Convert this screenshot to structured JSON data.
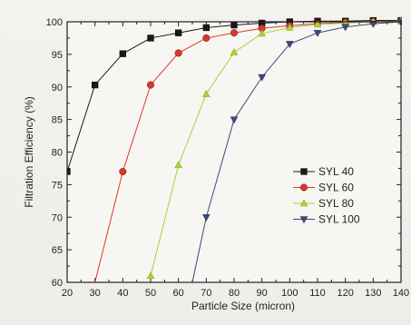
{
  "chart_data": {
    "type": "line",
    "xlabel": "Particle Size (micron)",
    "ylabel": "Filtration Efficiency (%)",
    "xlim": [
      20,
      140
    ],
    "ylim": [
      60,
      100
    ],
    "xticks": [
      20,
      30,
      40,
      50,
      60,
      70,
      80,
      90,
      100,
      110,
      120,
      130,
      140
    ],
    "yticks": [
      60,
      65,
      70,
      75,
      80,
      85,
      90,
      95,
      100
    ],
    "grid": false,
    "legend_position": "right",
    "series": [
      {
        "name": "SYL 40",
        "color": "#1a1a1a",
        "marker": "square",
        "points": [
          [
            20,
            77
          ],
          [
            30,
            90.3
          ],
          [
            40,
            95.1
          ],
          [
            50,
            97.5
          ],
          [
            60,
            98.3
          ],
          [
            70,
            99.1
          ],
          [
            80,
            99.5
          ],
          [
            90,
            99.8
          ],
          [
            100,
            100
          ],
          [
            110,
            100.1
          ],
          [
            120,
            100.1
          ],
          [
            130,
            100.2
          ],
          [
            140,
            100.2
          ]
        ]
      },
      {
        "name": "SYL 60",
        "color": "#d9392b",
        "marker": "circle",
        "points": [
          [
            30,
            60
          ],
          [
            40,
            77
          ],
          [
            50,
            90.3
          ],
          [
            60,
            95.2
          ],
          [
            70,
            97.5
          ],
          [
            80,
            98.3
          ],
          [
            90,
            99
          ],
          [
            100,
            99.4
          ],
          [
            110,
            99.7
          ],
          [
            120,
            99.9
          ],
          [
            130,
            100
          ],
          [
            140,
            100.1
          ]
        ]
      },
      {
        "name": "SYL 80",
        "color": "#a8d23a",
        "marker": "triangle-up",
        "points": [
          [
            50,
            61
          ],
          [
            60,
            78
          ],
          [
            70,
            88.9
          ],
          [
            80,
            95.3
          ],
          [
            90,
            98.2
          ],
          [
            100,
            99.1
          ],
          [
            110,
            99.6
          ],
          [
            120,
            99.8
          ],
          [
            130,
            100
          ],
          [
            140,
            100.1
          ]
        ]
      },
      {
        "name": "SYL 100",
        "color": "#3a4a78",
        "marker": "triangle-down",
        "points": [
          [
            65,
            60
          ],
          [
            70,
            70
          ],
          [
            80,
            85
          ],
          [
            90,
            91.5
          ],
          [
            100,
            96.6
          ],
          [
            110,
            98.3
          ],
          [
            120,
            99.2
          ],
          [
            130,
            99.7
          ],
          [
            140,
            100
          ]
        ]
      }
    ]
  }
}
